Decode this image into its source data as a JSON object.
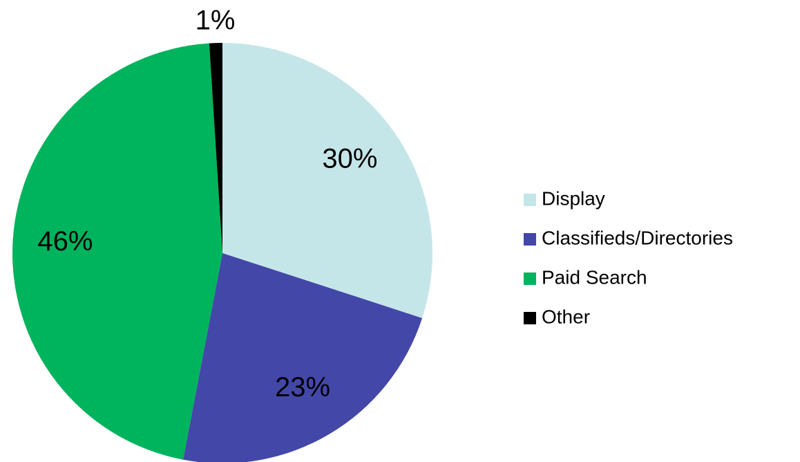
{
  "chart_data": {
    "type": "pie",
    "categories": [
      "Display",
      "Classifieds/Directories",
      "Paid Search",
      "Other"
    ],
    "values": [
      30,
      23,
      46,
      1
    ],
    "value_labels": [
      "30%",
      "23%",
      "46%",
      "1%"
    ],
    "colors": [
      "#c5e6e8",
      "#4347a8",
      "#00b35d",
      "#000000"
    ],
    "legend": "right"
  }
}
